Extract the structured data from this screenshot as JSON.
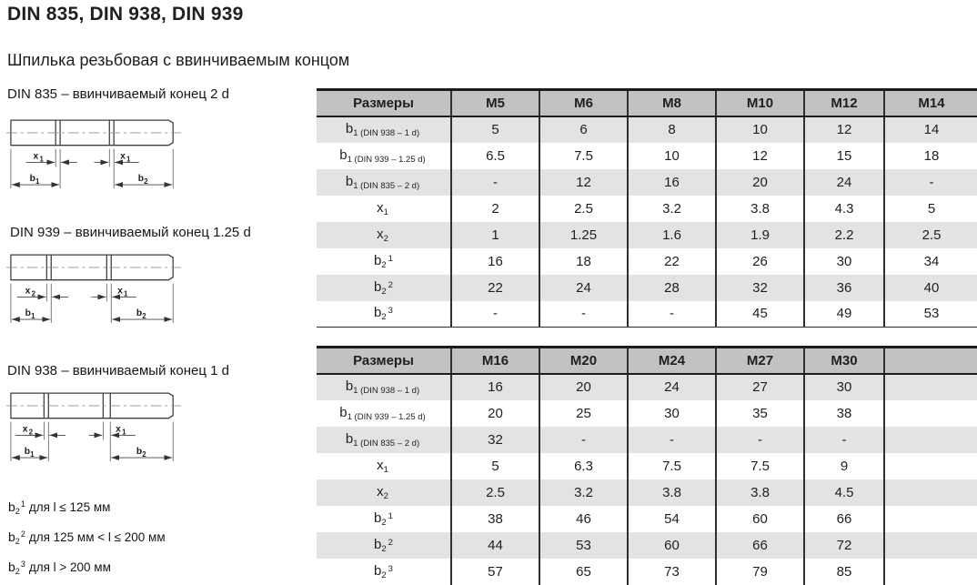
{
  "page": {
    "title": "DIN 835, DIN 938, DIN 939",
    "subtitle": "Шпилька резьбовая с ввинчиваемым концом"
  },
  "colors": {
    "header_bg": "#c2c2c2",
    "stripe_bg": "#e3e3e3",
    "border_dark": "#1c1c1c",
    "grid_line": "#2f2f2f",
    "draw_line": "#3f3f3f"
  },
  "diagrams": [
    {
      "caption": "DIN 835 – ввинчиваемый конец 2 d",
      "dim_labels": {
        "left_x": {
          "base": "x",
          "sub": "1"
        },
        "right_x": {
          "base": "x",
          "sub": "1"
        },
        "left_b": {
          "base": "b",
          "sub": "1"
        },
        "right_b": {
          "base": "b",
          "sub": "2"
        }
      }
    },
    {
      "caption": "DIN 939 – ввинчиваемый конец 1.25 d",
      "dim_labels": {
        "left_x": {
          "base": "x",
          "sub": "2"
        },
        "right_x": {
          "base": "x",
          "sub": "1"
        },
        "left_b": {
          "base": "b",
          "sub": "1"
        },
        "right_b": {
          "base": "b",
          "sub": "2"
        }
      }
    },
    {
      "caption": "DIN 938 – ввинчиваемый конец 1 d",
      "dim_labels": {
        "left_x": {
          "base": "x",
          "sub": "2"
        },
        "right_x": {
          "base": "x",
          "sub": "1"
        },
        "left_b": {
          "base": "b",
          "sub": "1"
        },
        "right_b": {
          "base": "b",
          "sub": "2"
        }
      }
    }
  ],
  "footnotes": [
    {
      "base": "b",
      "sub": "2",
      "sup": "1",
      "text": "для l ≤ 125 мм"
    },
    {
      "base": "b",
      "sub": "2",
      "sup": "2",
      "text": "для 125 мм < l ≤ 200 мм"
    },
    {
      "base": "b",
      "sub": "2",
      "sup": "3",
      "text": "для l > 200 мм"
    }
  ],
  "tables": [
    {
      "header": [
        "Размеры",
        "M5",
        "M6",
        "M8",
        "M10",
        "M12",
        "M14"
      ],
      "rows": [
        {
          "label": {
            "base": "b",
            "sub": "1 (DIN 938 – 1 d)",
            "sup": ""
          },
          "values": [
            "5",
            "6",
            "8",
            "10",
            "12",
            "14"
          ]
        },
        {
          "label": {
            "base": "b",
            "sub": "1 (DIN 939 – 1.25 d)",
            "sup": ""
          },
          "values": [
            "6.5",
            "7.5",
            "10",
            "12",
            "15",
            "18"
          ]
        },
        {
          "label": {
            "base": "b",
            "sub": "1 (DIN 835 – 2 d)",
            "sup": ""
          },
          "values": [
            "-",
            "12",
            "16",
            "20",
            "24",
            "-"
          ]
        },
        {
          "label": {
            "base": "x",
            "sub": "1",
            "sup": ""
          },
          "values": [
            "2",
            "2.5",
            "3.2",
            "3.8",
            "4.3",
            "5"
          ]
        },
        {
          "label": {
            "base": "x",
            "sub": "2",
            "sup": ""
          },
          "values": [
            "1",
            "1.25",
            "1.6",
            "1.9",
            "2.2",
            "2.5"
          ]
        },
        {
          "label": {
            "base": "b",
            "sub": "2",
            "sup": "1"
          },
          "values": [
            "16",
            "18",
            "22",
            "26",
            "30",
            "34"
          ]
        },
        {
          "label": {
            "base": "b",
            "sub": "2",
            "sup": "2"
          },
          "values": [
            "22",
            "24",
            "28",
            "32",
            "36",
            "40"
          ]
        },
        {
          "label": {
            "base": "b",
            "sub": "2",
            "sup": "3"
          },
          "values": [
            "-",
            "-",
            "-",
            "45",
            "49",
            "53"
          ]
        }
      ]
    },
    {
      "header": [
        "Размеры",
        "M16",
        "M20",
        "M24",
        "M27",
        "M30",
        ""
      ],
      "rows": [
        {
          "label": {
            "base": "b",
            "sub": "1 (DIN 938 – 1 d)",
            "sup": ""
          },
          "values": [
            "16",
            "20",
            "24",
            "27",
            "30",
            ""
          ]
        },
        {
          "label": {
            "base": "b",
            "sub": "1 (DIN 939 – 1.25 d)",
            "sup": ""
          },
          "values": [
            "20",
            "25",
            "30",
            "35",
            "38",
            ""
          ]
        },
        {
          "label": {
            "base": "b",
            "sub": "1 (DIN 835 – 2 d)",
            "sup": ""
          },
          "values": [
            "32",
            "-",
            "-",
            "-",
            "-",
            ""
          ]
        },
        {
          "label": {
            "base": "x",
            "sub": "1",
            "sup": ""
          },
          "values": [
            "5",
            "6.3",
            "7.5",
            "7.5",
            "9",
            ""
          ]
        },
        {
          "label": {
            "base": "x",
            "sub": "2",
            "sup": ""
          },
          "values": [
            "2.5",
            "3.2",
            "3.8",
            "3.8",
            "4.5",
            ""
          ]
        },
        {
          "label": {
            "base": "b",
            "sub": "2",
            "sup": "1"
          },
          "values": [
            "38",
            "46",
            "54",
            "60",
            "66",
            ""
          ]
        },
        {
          "label": {
            "base": "b",
            "sub": "2",
            "sup": "2"
          },
          "values": [
            "44",
            "53",
            "60",
            "66",
            "72",
            ""
          ]
        },
        {
          "label": {
            "base": "b",
            "sub": "2",
            "sup": "3"
          },
          "values": [
            "57",
            "65",
            "73",
            "79",
            "85",
            ""
          ]
        }
      ]
    }
  ]
}
